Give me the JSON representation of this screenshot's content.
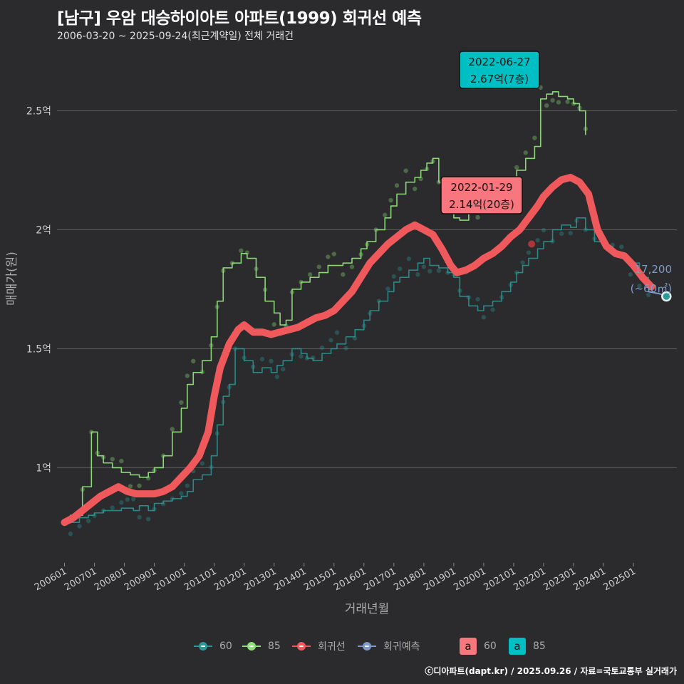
{
  "header": {
    "title": "[남구] 우암 대승하이아트 아파트(1999) 회귀선 예측",
    "subtitle": "2006-03-20 ~ 2025-09-24(최근계약일) 전체 거래건"
  },
  "footer": {
    "credit": "ⓒ디아파트(dapt.kr) / 2025.09.26 / 자료=국토교통부 실거래가"
  },
  "legend": {
    "items": [
      {
        "label": "60",
        "color": "#2a9a97"
      },
      {
        "label": "85",
        "color": "#8fe07a"
      },
      {
        "label": "회귀선",
        "color": "#f0595c"
      },
      {
        "label": "회귀예측",
        "color": "#7e9ac8"
      }
    ],
    "boxes": [
      {
        "glyph": "a",
        "label": "60",
        "color": "#f8767d"
      },
      {
        "glyph": "a",
        "label": "85",
        "color": "#00bfc4"
      }
    ]
  },
  "chart_data": {
    "type": "line",
    "title": "[남구] 우암 대승하이아트 아파트(1999) 회귀선 예측",
    "xlabel": "거래년월",
    "ylabel": "매매가(원)",
    "xlim": [
      2005.75,
      2026.45
    ],
    "ylim": [
      0.6,
      2.75
    ],
    "x_ticks": [
      2006,
      2007,
      2008,
      2009,
      2010,
      2011,
      2012,
      2013,
      2014,
      2015,
      2016,
      2017,
      2018,
      2019,
      2020,
      2021,
      2022,
      2023,
      2024,
      2025
    ],
    "x_tick_labels": [
      "200601",
      "200701",
      "200801",
      "200901",
      "201001",
      "201101",
      "201201",
      "201301",
      "201401",
      "201501",
      "201601",
      "201701",
      "201801",
      "201901",
      "202001",
      "202101",
      "202201",
      "202301",
      "202401",
      "202501"
    ],
    "y_ticks": [
      1.0,
      1.5,
      2.0,
      2.5
    ],
    "y_tick_labels": [
      "1억",
      "1.5억",
      "2억",
      "2.5억"
    ],
    "series": [
      {
        "name": "60",
        "color": "#2a9a97",
        "x": [
          2006.2,
          2006.5,
          2006.8,
          2007.0,
          2007.3,
          2007.6,
          2007.9,
          2008.1,
          2008.3,
          2008.5,
          2008.8,
          2009.0,
          2009.3,
          2009.6,
          2009.9,
          2010.1,
          2010.3,
          2010.6,
          2010.9,
          2011.1,
          2011.3,
          2011.5,
          2011.7,
          2012.0,
          2012.3,
          2012.6,
          2012.9,
          2013.1,
          2013.3,
          2013.6,
          2013.9,
          2014.1,
          2014.3,
          2014.6,
          2014.9,
          2015.1,
          2015.4,
          2015.7,
          2016.0,
          2016.2,
          2016.5,
          2016.8,
          2017.0,
          2017.2,
          2017.5,
          2017.8,
          2018.0,
          2018.2,
          2018.5,
          2018.8,
          2019.0,
          2019.2,
          2019.5,
          2019.8,
          2020.0,
          2020.3,
          2020.6,
          2020.9,
          2021.1,
          2021.3,
          2021.5,
          2021.8,
          2022.0,
          2022.3,
          2022.6,
          2022.9,
          2023.1,
          2023.4,
          2023.7,
          2024.0,
          2024.3,
          2024.6,
          2024.9,
          2025.2,
          2025.5
        ],
        "values": [
          0.77,
          0.79,
          0.8,
          0.81,
          0.82,
          0.82,
          0.83,
          0.83,
          0.82,
          0.84,
          0.82,
          0.85,
          0.86,
          0.87,
          0.88,
          0.9,
          0.95,
          0.97,
          1.05,
          1.18,
          1.3,
          1.35,
          1.5,
          1.45,
          1.4,
          1.42,
          1.4,
          1.43,
          1.45,
          1.5,
          1.48,
          1.46,
          1.45,
          1.48,
          1.5,
          1.52,
          1.55,
          1.58,
          1.62,
          1.66,
          1.7,
          1.74,
          1.78,
          1.8,
          1.83,
          1.86,
          1.88,
          1.85,
          1.84,
          1.82,
          1.8,
          1.72,
          1.68,
          1.66,
          1.68,
          1.7,
          1.74,
          1.78,
          1.82,
          1.85,
          1.88,
          1.92,
          1.95,
          2.0,
          2.02,
          2.01,
          2.05,
          2.0,
          1.95,
          1.93,
          1.9,
          1.88,
          1.86,
          1.8,
          1.75
        ]
      },
      {
        "name": "85",
        "color": "#8fe07a",
        "x": [
          2006.2,
          2006.6,
          2006.9,
          2007.1,
          2007.3,
          2007.6,
          2007.9,
          2008.2,
          2008.5,
          2008.8,
          2009.0,
          2009.3,
          2009.6,
          2009.9,
          2010.1,
          2010.3,
          2010.6,
          2010.9,
          2011.1,
          2011.3,
          2011.6,
          2011.9,
          2012.1,
          2012.4,
          2012.7,
          2013.0,
          2013.2,
          2013.4,
          2013.6,
          2013.9,
          2014.2,
          2014.5,
          2014.8,
          2015.0,
          2015.3,
          2015.6,
          2015.9,
          2016.1,
          2016.4,
          2016.7,
          2016.9,
          2017.1,
          2017.4,
          2017.7,
          2017.9,
          2018.1,
          2018.3,
          2018.5,
          2018.8,
          2019.0,
          2019.2,
          2019.5,
          2019.8,
          2020.0,
          2020.3,
          2020.6,
          2020.9,
          2021.1,
          2021.4,
          2021.7,
          2021.9,
          2022.1,
          2022.3,
          2022.5,
          2022.8,
          2023.0,
          2023.2,
          2023.4
        ],
        "values": [
          0.8,
          0.92,
          1.15,
          1.05,
          1.02,
          1.0,
          0.98,
          0.97,
          0.96,
          0.98,
          1.0,
          1.05,
          1.15,
          1.25,
          1.35,
          1.4,
          1.45,
          1.55,
          1.7,
          1.84,
          1.86,
          1.9,
          1.88,
          1.8,
          1.7,
          1.65,
          1.6,
          1.62,
          1.75,
          1.78,
          1.8,
          1.82,
          1.85,
          1.85,
          1.86,
          1.88,
          1.92,
          1.95,
          2.0,
          2.05,
          2.1,
          2.15,
          2.2,
          2.22,
          2.25,
          2.28,
          2.3,
          2.2,
          2.1,
          2.05,
          2.04,
          2.08,
          2.1,
          2.12,
          2.15,
          2.18,
          2.2,
          2.25,
          2.3,
          2.35,
          2.55,
          2.57,
          2.58,
          2.56,
          2.55,
          2.53,
          2.5,
          2.4
        ]
      },
      {
        "name": "회귀선",
        "color": "#f0595c",
        "x": [
          2006.0,
          2006.3,
          2006.6,
          2006.9,
          2007.2,
          2007.5,
          2007.8,
          2008.1,
          2008.4,
          2008.7,
          2009.0,
          2009.3,
          2009.6,
          2009.9,
          2010.2,
          2010.5,
          2010.8,
          2011.0,
          2011.2,
          2011.5,
          2011.8,
          2012.0,
          2012.3,
          2012.6,
          2012.9,
          2013.2,
          2013.5,
          2013.8,
          2014.1,
          2014.4,
          2014.7,
          2015.0,
          2015.3,
          2015.6,
          2015.9,
          2016.2,
          2016.5,
          2016.8,
          2017.1,
          2017.4,
          2017.7,
          2018.0,
          2018.3,
          2018.6,
          2018.9,
          2019.1,
          2019.4,
          2019.7,
          2020.0,
          2020.3,
          2020.6,
          2020.9,
          2021.2,
          2021.5,
          2021.8,
          2022.0,
          2022.3,
          2022.6,
          2022.9,
          2023.2,
          2023.5,
          2023.8,
          2024.1,
          2024.4,
          2024.7,
          2025.0,
          2025.3,
          2025.6
        ],
        "values": [
          0.77,
          0.79,
          0.82,
          0.85,
          0.88,
          0.9,
          0.92,
          0.9,
          0.89,
          0.89,
          0.89,
          0.9,
          0.92,
          0.96,
          1.0,
          1.05,
          1.15,
          1.3,
          1.42,
          1.52,
          1.58,
          1.6,
          1.57,
          1.57,
          1.56,
          1.57,
          1.58,
          1.59,
          1.61,
          1.63,
          1.64,
          1.66,
          1.7,
          1.74,
          1.8,
          1.86,
          1.9,
          1.94,
          1.97,
          2.0,
          2.02,
          2.0,
          1.98,
          1.92,
          1.85,
          1.82,
          1.83,
          1.85,
          1.88,
          1.9,
          1.93,
          1.97,
          2.0,
          2.05,
          2.1,
          2.14,
          2.18,
          2.21,
          2.22,
          2.2,
          2.15,
          2.0,
          1.93,
          1.9,
          1.89,
          1.85,
          1.8,
          1.76
        ]
      },
      {
        "name": "회귀예측",
        "color": "#7e9ac8",
        "x": [
          2025.5,
          2025.9,
          2026.1
        ],
        "values": [
          1.74,
          1.73,
          1.72
        ]
      }
    ],
    "annotations": [
      {
        "date": "2022-06-27",
        "price": "2.67억(7층)",
        "x": 2022.49,
        "y": 2.67,
        "color": "#00bfc4"
      },
      {
        "date": "2022-01-29",
        "price": "2.14억(20층)",
        "x": 2022.08,
        "y": 2.14,
        "color": "#f8767d"
      }
    ],
    "prediction": {
      "label": "17,200",
      "area": "(~60㎡)",
      "x": 2026.1,
      "y": 1.72
    }
  }
}
